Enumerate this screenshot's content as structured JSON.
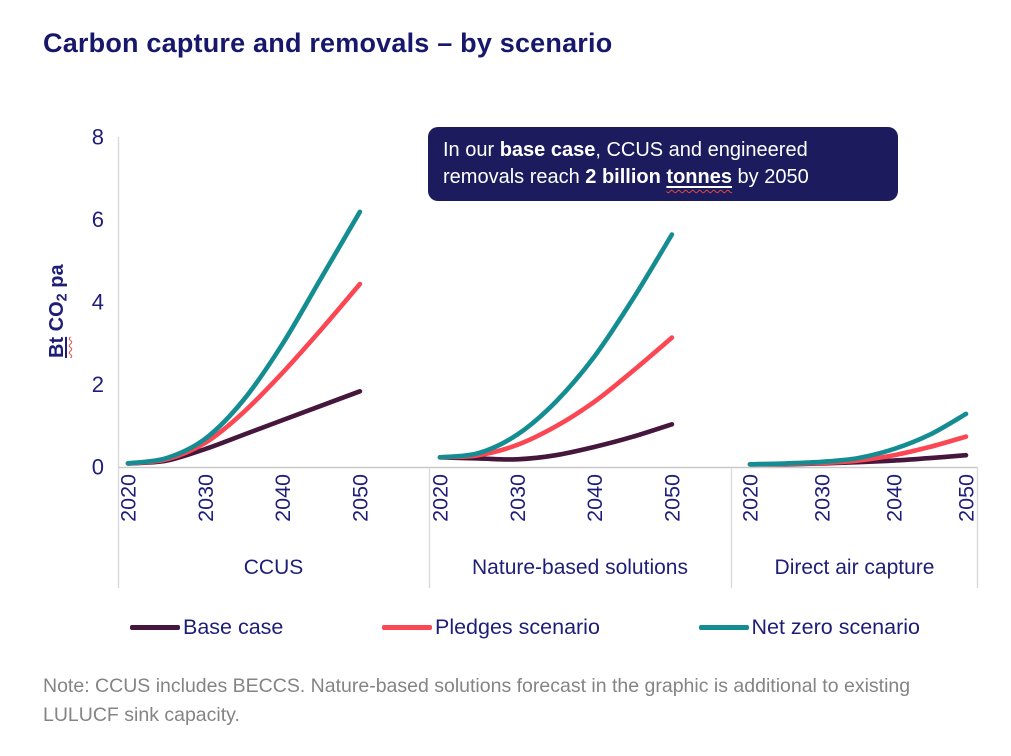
{
  "page": {
    "title": "Carbon capture and removals – by scenario",
    "note": "Note: CCUS includes BECCS. Nature-based solutions forecast in the graphic is additional to existing LULUCF sink capacity."
  },
  "callout": {
    "segments": [
      {
        "text": "In our ",
        "bold": false,
        "underline": false
      },
      {
        "text": "base case",
        "bold": true,
        "underline": false
      },
      {
        "text": ", CCUS and engineered removals reach ",
        "bold": false,
        "underline": false
      },
      {
        "text": "2 billion ",
        "bold": true,
        "underline": false
      },
      {
        "text": "tonnes",
        "bold": true,
        "underline": true
      },
      {
        "text": " by 2050",
        "bold": false,
        "underline": false
      }
    ]
  },
  "colors": {
    "navy_text": "#1E1E78",
    "callout_bg": "#1B1B5E",
    "axis_line": "#C9C9C9",
    "separator_line": "#D9D9D9",
    "note_gray": "#848484",
    "base": "#45173C",
    "pledges": "#FA4753",
    "netzero": "#148D92"
  },
  "legend": {
    "items": [
      {
        "label": "Base case",
        "color": "#45173C",
        "series_key": "base"
      },
      {
        "label": "Pledges scenario",
        "color": "#FA4753",
        "series_key": "pledges"
      },
      {
        "label": "Net zero scenario",
        "color": "#148D92",
        "series_key": "netzero"
      }
    ]
  },
  "chart_data": {
    "type": "line",
    "title": "Carbon capture and removals – by scenario",
    "ylabel": "Bt CO2 pa",
    "ylabel_parts": {
      "prefix": "Bt",
      "mid": " CO",
      "sub": "2",
      "suffix": " pa"
    },
    "ylim": [
      0,
      8
    ],
    "y_ticks": [
      0,
      2,
      4,
      6,
      8
    ],
    "x_ticks": [
      2020,
      2030,
      2040,
      2050
    ],
    "years": [
      2020,
      2025,
      2030,
      2035,
      2040,
      2045,
      2050
    ],
    "grid": false,
    "legend_position": "bottom",
    "panels": [
      {
        "label": "CCUS",
        "series": [
          {
            "name": "Base case",
            "key": "base",
            "values": [
              0.05,
              0.12,
              0.4,
              0.75,
              1.1,
              1.45,
              1.8
            ]
          },
          {
            "name": "Pledges scenario",
            "key": "pledges",
            "values": [
              0.05,
              0.15,
              0.55,
              1.3,
              2.25,
              3.3,
              4.4
            ]
          },
          {
            "name": "Net zero scenario",
            "key": "netzero",
            "values": [
              0.05,
              0.18,
              0.65,
              1.6,
              2.95,
              4.55,
              6.15
            ]
          }
        ]
      },
      {
        "label": "Nature-based solutions",
        "series": [
          {
            "name": "Base case",
            "key": "base",
            "values": [
              0.2,
              0.17,
              0.15,
              0.25,
              0.45,
              0.7,
              1.0
            ]
          },
          {
            "name": "Pledges scenario",
            "key": "pledges",
            "values": [
              0.2,
              0.25,
              0.5,
              0.95,
              1.55,
              2.3,
              3.1
            ]
          },
          {
            "name": "Net zero scenario",
            "key": "netzero",
            "values": [
              0.2,
              0.3,
              0.75,
              1.55,
              2.65,
              4.05,
              5.6
            ]
          }
        ]
      },
      {
        "label": "Direct air capture",
        "series": [
          {
            "name": "Base case",
            "key": "base",
            "values": [
              0.03,
              0.03,
              0.05,
              0.08,
              0.12,
              0.18,
              0.25
            ]
          },
          {
            "name": "Pledges scenario",
            "key": "pledges",
            "values": [
              0.03,
              0.04,
              0.06,
              0.12,
              0.25,
              0.45,
              0.7
            ]
          },
          {
            "name": "Net zero scenario",
            "key": "netzero",
            "values": [
              0.03,
              0.05,
              0.09,
              0.18,
              0.4,
              0.75,
              1.25
            ]
          }
        ]
      }
    ]
  }
}
